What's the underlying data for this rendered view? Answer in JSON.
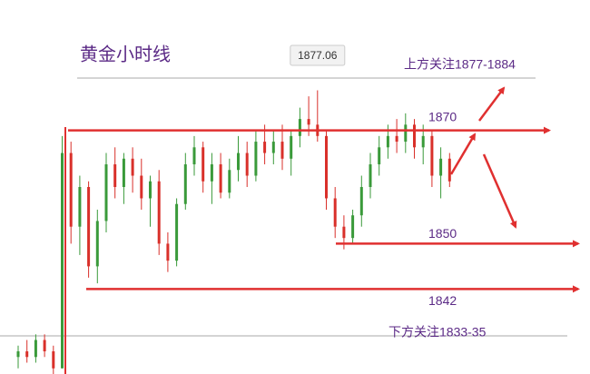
{
  "chart_data": {
    "type": "candlestick",
    "title": "黄金小时线",
    "upper_note": "上方关注1877-1884",
    "lower_note": "下方关注1833-35",
    "peak_label": 1877.06,
    "levels": [
      1870,
      1850,
      1842
    ],
    "ylim": [
      1827,
      1893
    ],
    "up_color": "#3a9a3a",
    "down_color": "#d9302a",
    "level_color": "#e03030",
    "open": [
      1830,
      1831,
      1830,
      1833,
      1831,
      1828,
      1866,
      1853,
      1860,
      1846,
      1854,
      1864,
      1860,
      1865,
      1862,
      1858,
      1861,
      1850,
      1847,
      1857,
      1864,
      1867,
      1861,
      1864,
      1859,
      1863,
      1866,
      1862,
      1868,
      1866,
      1868,
      1865,
      1869,
      1872,
      1871,
      1869,
      1858,
      1853,
      1851,
      1855,
      1860,
      1864,
      1867,
      1869,
      1868,
      1871,
      1867,
      1869,
      1862,
      1865
    ],
    "high": [
      1832,
      1833,
      1834,
      1834,
      1832,
      1869,
      1868,
      1862,
      1861,
      1856,
      1866,
      1867,
      1866,
      1867,
      1865,
      1862,
      1863,
      1852,
      1858,
      1866,
      1869,
      1868,
      1866,
      1866,
      1865,
      1869,
      1868,
      1870,
      1871,
      1870,
      1871,
      1870,
      1874,
      1876,
      1877.06,
      1870,
      1860,
      1855,
      1856,
      1862,
      1866,
      1869,
      1871,
      1872,
      1873,
      1872,
      1871,
      1870,
      1867,
      1866
    ],
    "low": [
      1828,
      1829,
      1829,
      1830,
      1827,
      1828,
      1850,
      1848,
      1844,
      1843,
      1852,
      1858,
      1857,
      1859,
      1856,
      1853,
      1848,
      1845,
      1846,
      1856,
      1862,
      1859,
      1857,
      1858,
      1858,
      1861,
      1860,
      1861,
      1864,
      1864,
      1863,
      1862,
      1867,
      1869,
      1868,
      1856,
      1851,
      1849,
      1850,
      1853,
      1858,
      1862,
      1865,
      1866,
      1866,
      1865,
      1864,
      1860,
      1858,
      1860
    ],
    "close": [
      1831,
      1830,
      1833,
      1831,
      1828,
      1866,
      1853,
      1860,
      1846,
      1854,
      1864,
      1860,
      1865,
      1862,
      1858,
      1861,
      1850,
      1847,
      1857,
      1864,
      1867,
      1861,
      1864,
      1859,
      1863,
      1866,
      1862,
      1868,
      1866,
      1868,
      1865,
      1869,
      1872,
      1871,
      1869,
      1858,
      1853,
      1851,
      1855,
      1860,
      1864,
      1867,
      1869,
      1868,
      1871,
      1867,
      1869,
      1862,
      1865,
      1861
    ]
  }
}
